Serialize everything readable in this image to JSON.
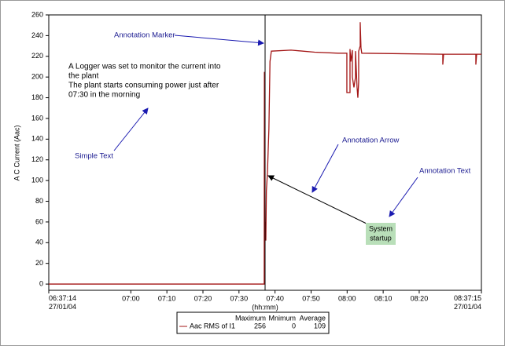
{
  "chart_data": {
    "type": "line",
    "x_label": "(hh:mm)",
    "y_label": "A C Current (Aac)",
    "xlim": [
      397.233,
      517.25
    ],
    "ylim": [
      -6,
      260
    ],
    "xticks": [
      {
        "value": 397.233,
        "label": "06:37:14\n27/01/04"
      },
      {
        "value": 420,
        "label": "07:00"
      },
      {
        "value": 430,
        "label": "07:10"
      },
      {
        "value": 440,
        "label": "07:20"
      },
      {
        "value": 450,
        "label": "07:30"
      },
      {
        "value": 460,
        "label": "07:40"
      },
      {
        "value": 470,
        "label": "07:50"
      },
      {
        "value": 480,
        "label": "08:00"
      },
      {
        "value": 490,
        "label": "08:10"
      },
      {
        "value": 500,
        "label": "08:20"
      },
      {
        "value": 517.25,
        "label": "08:37:15\n27/01/04"
      }
    ],
    "yticks": [
      0,
      20,
      40,
      60,
      80,
      100,
      120,
      140,
      160,
      180,
      200,
      220,
      240,
      260
    ],
    "series": [
      {
        "name": "Aac RMS of I1",
        "color": "#a31515",
        "x": [
          397.233,
          457.0,
          457.05,
          457.15,
          457.3,
          457.45,
          457.6,
          457.9,
          458.3,
          458.6,
          458.98,
          464.43,
          470.98,
          477.53,
          479.93,
          479.93,
          480.8,
          480.8,
          481.02,
          481.45,
          481.45,
          481.89,
          482.32,
          482.32,
          482.76,
          482.98,
          483.2,
          483.2,
          483.63,
          483.63,
          483.85,
          484.07,
          506.54,
          506.54,
          506.76,
          515.71,
          515.71,
          515.93,
          517.23
        ],
        "values": [
          0,
          0,
          205,
          45,
          60,
          42,
          90,
          108,
          150,
          215,
          225,
          226,
          224,
          223,
          223,
          185,
          185,
          227,
          215,
          226,
          200,
          190,
          200,
          225,
          190,
          180,
          195,
          225,
          230,
          253,
          228,
          223,
          222,
          212,
          222,
          222,
          212,
          222,
          222
        ]
      }
    ],
    "legend_stats": {
      "headers": [
        "Maximum",
        "Mnimum",
        "Average"
      ],
      "values": [
        256,
        0,
        109
      ]
    },
    "annotations": {
      "marker": "Annotation Marker",
      "text_block": [
        "A Logger was set to monitor the current into",
        "the plant",
        "The plant starts consuming power just after",
        "07:30 in the morning"
      ],
      "simple_text": "Simple Text",
      "arrow": "Annotation Arrow",
      "text": "Annotation Text",
      "box": [
        "System",
        "startup"
      ]
    }
  }
}
